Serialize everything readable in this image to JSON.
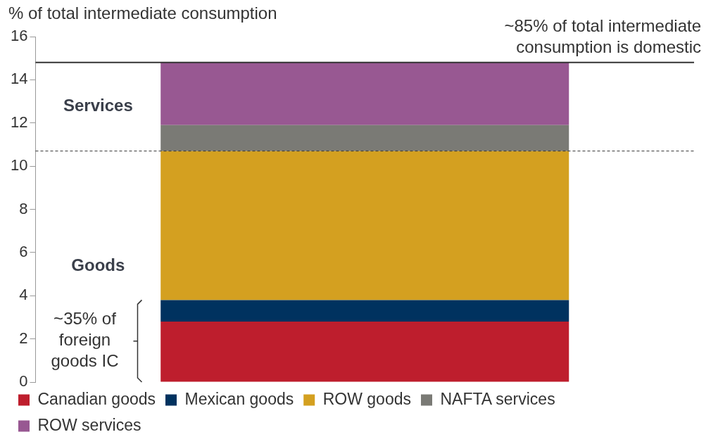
{
  "chart_data": {
    "type": "bar",
    "ylabel": "% of total intermediate consumption",
    "categories": [
      null
    ],
    "stacked": true,
    "series": [
      {
        "name": "Canadian goods",
        "color": "#be1e2d",
        "values": [
          2.8
        ]
      },
      {
        "name": "Mexican goods",
        "color": "#00325f",
        "values": [
          1.0
        ]
      },
      {
        "name": "ROW goods",
        "color": "#d4a020",
        "values": [
          6.9
        ]
      },
      {
        "name": "NAFTA services",
        "color": "#7a7a75",
        "values": [
          1.2
        ]
      },
      {
        "name": "ROW services",
        "color": "#985892",
        "values": [
          2.9
        ]
      }
    ],
    "ylim": [
      0,
      16
    ],
    "yticks": [
      0,
      2,
      4,
      6,
      8,
      10,
      12,
      14,
      16
    ],
    "grid": false,
    "legend": "bottom",
    "tick_labels": "y",
    "ref_lines": [
      {
        "axis": "y",
        "value": 14.8,
        "label": "~85% of total intermediate consumption is domestic",
        "color": "#333333",
        "line_style": "solid"
      },
      {
        "axis": "y",
        "value": 10.7,
        "color": "#333333",
        "line_style": "dashed"
      }
    ],
    "annotations": [
      "Services",
      "Goods",
      "~35% of foreign goods IC"
    ]
  }
}
